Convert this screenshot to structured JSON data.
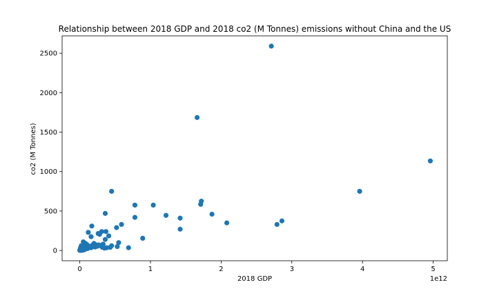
{
  "chart_data": {
    "type": "scatter",
    "title": "Relationship between 2018 GDP and 2018 co2 (M Tonnes) emissions without China and the US",
    "xlabel": "2018 GDP",
    "ylabel": "co2 (M Tonnes)",
    "x_offset_label": "1e12",
    "xlim": [
      -0.25,
      5.2
    ],
    "ylim": [
      -130,
      2720
    ],
    "x_ticks": [
      0,
      1,
      2,
      3,
      4,
      5
    ],
    "x_tick_labels": [
      "0",
      "1",
      "2",
      "3",
      "4",
      "5"
    ],
    "y_ticks": [
      0,
      500,
      1000,
      1500,
      2000,
      2500
    ],
    "y_tick_labels": [
      "0",
      "500",
      "1000",
      "1500",
      "2000",
      "2500"
    ],
    "grid": false,
    "marker_color": "#1f77b4",
    "series": [
      {
        "x": [
          2.71,
          1.66,
          4.96,
          3.96,
          0.45,
          1.72,
          1.71,
          1.87,
          0.78,
          1.04,
          0.36,
          1.22,
          1.42,
          2.08,
          2.86,
          2.79,
          0.78,
          1.42,
          0.59,
          0.17,
          0.52,
          0.31,
          0.37,
          0.28,
          0.12,
          0.26,
          0.41,
          0.16,
          0.89,
          0.69,
          0.36,
          0.55,
          0.02,
          0.05,
          0.08,
          0.1,
          0.2,
          0.24,
          0.33,
          0.45,
          0.29,
          0.15,
          0.06,
          0.03,
          0.01,
          0.07,
          0.11,
          0.13,
          0.18,
          0.22,
          0.04,
          0.09,
          0.14,
          0.19,
          0.27,
          0.38,
          0.43,
          0.53,
          0.02,
          0.05,
          0.08,
          0.03,
          0.06,
          0.01,
          0.04,
          0.12,
          0.16,
          0.21,
          0.25,
          0.32,
          0.35,
          0.0,
          0.01,
          0.02,
          0.03,
          0.05,
          0.07,
          0.09,
          0.11,
          0.02,
          0.04,
          0.06,
          0.0,
          0.01,
          0.03
        ],
        "y": [
          2590,
          1685,
          1135,
          750,
          750,
          625,
          585,
          460,
          575,
          575,
          470,
          445,
          410,
          350,
          375,
          330,
          420,
          270,
          330,
          310,
          290,
          240,
          240,
          205,
          230,
          215,
          185,
          175,
          155,
          35,
          140,
          100,
          60,
          110,
          90,
          75,
          90,
          70,
          80,
          60,
          60,
          55,
          50,
          40,
          30,
          45,
          35,
          55,
          65,
          45,
          25,
          30,
          40,
          50,
          70,
          35,
          40,
          50,
          15,
          20,
          25,
          10,
          15,
          5,
          20,
          30,
          35,
          45,
          55,
          40,
          30,
          5,
          8,
          12,
          6,
          10,
          15,
          20,
          25,
          3,
          4,
          8,
          2,
          1,
          3
        ]
      }
    ]
  }
}
